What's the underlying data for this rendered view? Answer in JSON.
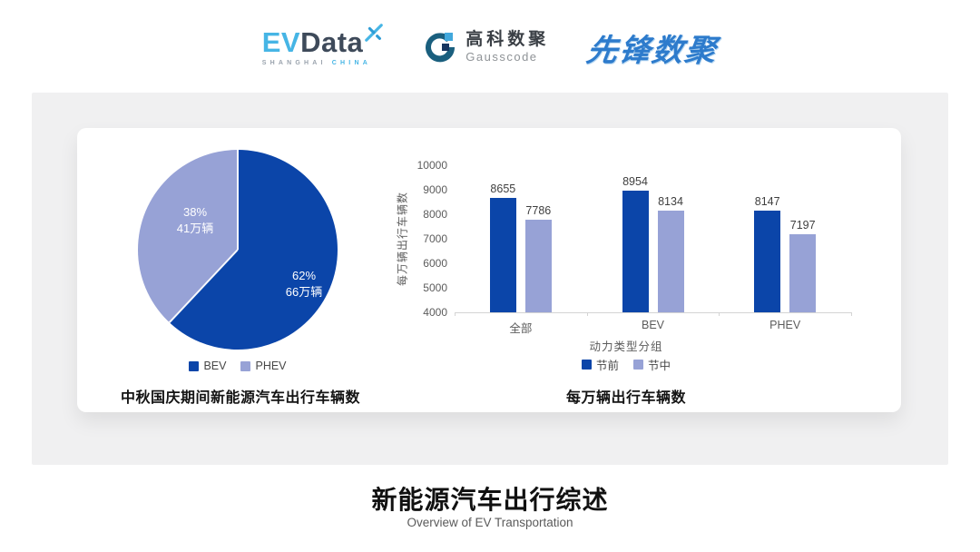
{
  "header": {
    "evdata_logo": {
      "ev": "EV",
      "data": "Data",
      "sub_left": "SHANGHAI",
      "sub_right": "CHINA"
    },
    "gausscode_logo": {
      "name_cn": "高科数聚",
      "name_en": "Gausscode"
    },
    "pioneer_logo": {
      "text": "先锋数聚"
    }
  },
  "palette": {
    "series_dark": "#0B45A9",
    "series_light": "#97A2D6",
    "panel_bg": "#F0F0F1",
    "axis_line": "#D4D4D4",
    "axis_text": "#5C5C5C",
    "evdata_blue": "#46B5E5",
    "evdata_dark": "#3E4A5A",
    "gauss_teal": "#1A5F7E",
    "gauss_lightblue": "#42A8DC",
    "gauss_navy": "#16355F",
    "pioneer_blue": "#2D7BCC"
  },
  "chart_data": [
    {
      "type": "pie",
      "title": "中秋国庆期间新能源汽车出行车辆数",
      "start_angle": "12-oclock",
      "direction": "clockwise",
      "legend_position": "bottom",
      "slices": [
        {
          "label": "BEV",
          "percent": 62,
          "percent_text": "62%",
          "value_text": "66万辆",
          "color": "#0B45A9"
        },
        {
          "label": "PHEV",
          "percent": 38,
          "percent_text": "38%",
          "value_text": "41万辆",
          "color": "#97A2D6"
        }
      ]
    },
    {
      "type": "bar",
      "title": "每万辆出行车辆数",
      "categories": [
        "全部",
        "BEV",
        "PHEV"
      ],
      "series": [
        {
          "name": "节前",
          "color": "#0B45A9",
          "values": [
            8655,
            8954,
            8147
          ]
        },
        {
          "name": "节中",
          "color": "#97A2D6",
          "values": [
            7786,
            8134,
            7197
          ]
        }
      ],
      "xlabel": "动力类型分组",
      "ylabel": "每万辆出行车辆数",
      "ylim": [
        4000,
        10000
      ],
      "yticks": [
        4000,
        5000,
        6000,
        7000,
        8000,
        9000,
        10000
      ],
      "grid": false,
      "legend_position": "bottom",
      "show_value_labels": true
    }
  ],
  "footer": {
    "title": "新能源汽车出行综述",
    "subtitle": "Overview of EV Transportation"
  }
}
